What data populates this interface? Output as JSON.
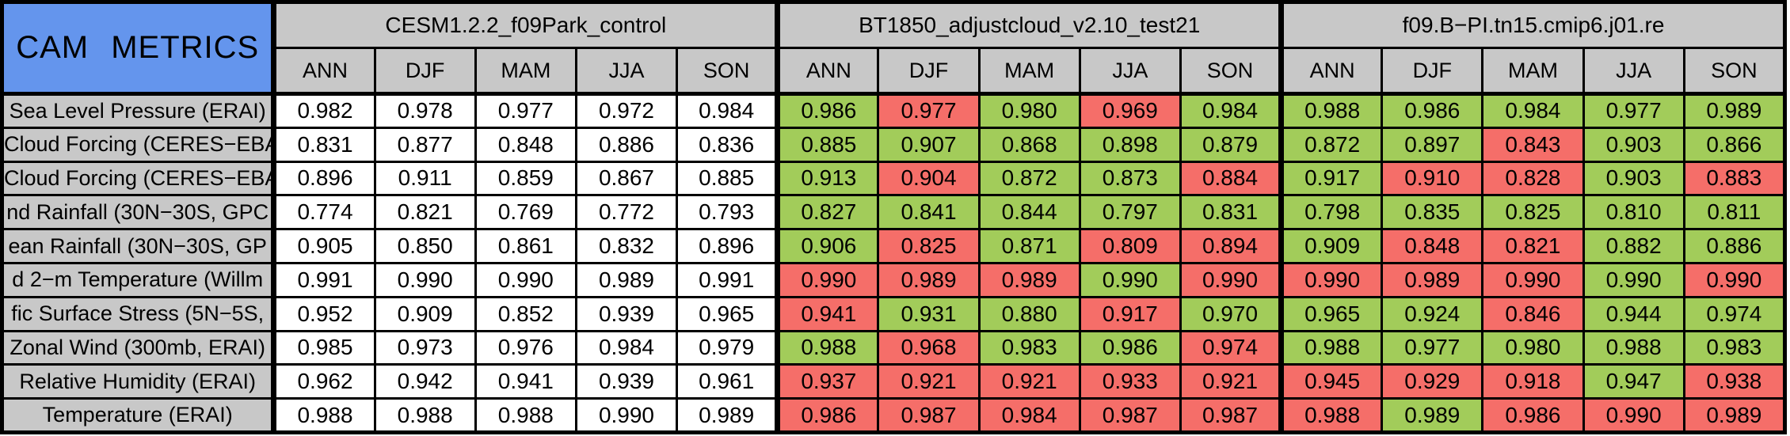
{
  "colors": {
    "header_blue": "#6495ED",
    "header_gray": "#C8C8C8",
    "good_green": "#A2CC5A",
    "bad_red": "#F56E69",
    "border_black": "#000000",
    "neutral_white": "#FFFFFF"
  },
  "chart_data": {
    "type": "table",
    "corner_label": "CAM METRICS",
    "seasons": [
      "ANN",
      "DJF",
      "MAM",
      "JJA",
      "SON"
    ],
    "groups": [
      {
        "name": "CESM1.2.2_f09Park_control"
      },
      {
        "name": "BT1850_adjustcloud_v2.10_test21"
      },
      {
        "name": "f09.B−PI.tn15.cmip6.j01.re"
      }
    ],
    "color_legend": {
      "w": "reference (no comparison color)",
      "g": "better/green",
      "r": "worse/red"
    },
    "rows": [
      {
        "label": "Sea Level Pressure (ERAI)",
        "values": [
          [
            "0.982",
            "0.978",
            "0.977",
            "0.972",
            "0.984"
          ],
          [
            "0.986",
            "0.977",
            "0.980",
            "0.969",
            "0.984"
          ],
          [
            "0.988",
            "0.986",
            "0.984",
            "0.977",
            "0.989"
          ]
        ],
        "flags": [
          [
            "w",
            "w",
            "w",
            "w",
            "w"
          ],
          [
            "g",
            "r",
            "g",
            "r",
            "g"
          ],
          [
            "g",
            "g",
            "g",
            "g",
            "g"
          ]
        ]
      },
      {
        "label": "Cloud Forcing (CERES−EBA",
        "values": [
          [
            "0.831",
            "0.877",
            "0.848",
            "0.886",
            "0.836"
          ],
          [
            "0.885",
            "0.907",
            "0.868",
            "0.898",
            "0.879"
          ],
          [
            "0.872",
            "0.897",
            "0.843",
            "0.903",
            "0.866"
          ]
        ],
        "flags": [
          [
            "w",
            "w",
            "w",
            "w",
            "w"
          ],
          [
            "g",
            "g",
            "g",
            "g",
            "g"
          ],
          [
            "g",
            "g",
            "r",
            "g",
            "g"
          ]
        ]
      },
      {
        "label": "Cloud Forcing (CERES−EBA",
        "values": [
          [
            "0.896",
            "0.911",
            "0.859",
            "0.867",
            "0.885"
          ],
          [
            "0.913",
            "0.904",
            "0.872",
            "0.873",
            "0.884"
          ],
          [
            "0.917",
            "0.910",
            "0.828",
            "0.903",
            "0.883"
          ]
        ],
        "flags": [
          [
            "w",
            "w",
            "w",
            "w",
            "w"
          ],
          [
            "g",
            "r",
            "g",
            "g",
            "r"
          ],
          [
            "g",
            "r",
            "r",
            "g",
            "r"
          ]
        ]
      },
      {
        "label": "nd Rainfall (30N−30S, GPC",
        "values": [
          [
            "0.774",
            "0.821",
            "0.769",
            "0.772",
            "0.793"
          ],
          [
            "0.827",
            "0.841",
            "0.844",
            "0.797",
            "0.831"
          ],
          [
            "0.798",
            "0.835",
            "0.825",
            "0.810",
            "0.811"
          ]
        ],
        "flags": [
          [
            "w",
            "w",
            "w",
            "w",
            "w"
          ],
          [
            "g",
            "g",
            "g",
            "g",
            "g"
          ],
          [
            "g",
            "g",
            "g",
            "g",
            "g"
          ]
        ]
      },
      {
        "label": "ean Rainfall (30N−30S, GP",
        "values": [
          [
            "0.905",
            "0.850",
            "0.861",
            "0.832",
            "0.896"
          ],
          [
            "0.906",
            "0.825",
            "0.871",
            "0.809",
            "0.894"
          ],
          [
            "0.909",
            "0.848",
            "0.821",
            "0.882",
            "0.886"
          ]
        ],
        "flags": [
          [
            "w",
            "w",
            "w",
            "w",
            "w"
          ],
          [
            "g",
            "r",
            "g",
            "r",
            "r"
          ],
          [
            "g",
            "r",
            "r",
            "g",
            "g"
          ]
        ]
      },
      {
        "label": "d 2−m Temperature (Willm",
        "values": [
          [
            "0.991",
            "0.990",
            "0.990",
            "0.989",
            "0.991"
          ],
          [
            "0.990",
            "0.989",
            "0.989",
            "0.990",
            "0.990"
          ],
          [
            "0.990",
            "0.989",
            "0.990",
            "0.990",
            "0.990"
          ]
        ],
        "flags": [
          [
            "w",
            "w",
            "w",
            "w",
            "w"
          ],
          [
            "r",
            "r",
            "r",
            "g",
            "r"
          ],
          [
            "r",
            "r",
            "r",
            "g",
            "r"
          ]
        ]
      },
      {
        "label": "fic Surface Stress (5N−5S,",
        "values": [
          [
            "0.952",
            "0.909",
            "0.852",
            "0.939",
            "0.965"
          ],
          [
            "0.941",
            "0.931",
            "0.880",
            "0.917",
            "0.970"
          ],
          [
            "0.965",
            "0.924",
            "0.846",
            "0.944",
            "0.974"
          ]
        ],
        "flags": [
          [
            "w",
            "w",
            "w",
            "w",
            "w"
          ],
          [
            "r",
            "g",
            "g",
            "r",
            "g"
          ],
          [
            "g",
            "g",
            "r",
            "g",
            "g"
          ]
        ]
      },
      {
        "label": "Zonal Wind (300mb, ERAI)",
        "values": [
          [
            "0.985",
            "0.973",
            "0.976",
            "0.984",
            "0.979"
          ],
          [
            "0.988",
            "0.968",
            "0.983",
            "0.986",
            "0.974"
          ],
          [
            "0.988",
            "0.977",
            "0.980",
            "0.988",
            "0.983"
          ]
        ],
        "flags": [
          [
            "w",
            "w",
            "w",
            "w",
            "w"
          ],
          [
            "g",
            "r",
            "g",
            "g",
            "r"
          ],
          [
            "g",
            "g",
            "g",
            "g",
            "g"
          ]
        ]
      },
      {
        "label": "Relative Humidity (ERAI)",
        "values": [
          [
            "0.962",
            "0.942",
            "0.941",
            "0.939",
            "0.961"
          ],
          [
            "0.937",
            "0.921",
            "0.921",
            "0.933",
            "0.921"
          ],
          [
            "0.945",
            "0.929",
            "0.918",
            "0.947",
            "0.938"
          ]
        ],
        "flags": [
          [
            "w",
            "w",
            "w",
            "w",
            "w"
          ],
          [
            "r",
            "r",
            "r",
            "r",
            "r"
          ],
          [
            "r",
            "r",
            "r",
            "g",
            "r"
          ]
        ]
      },
      {
        "label": "Temperature (ERAI)",
        "values": [
          [
            "0.988",
            "0.988",
            "0.988",
            "0.990",
            "0.989"
          ],
          [
            "0.986",
            "0.987",
            "0.984",
            "0.987",
            "0.987"
          ],
          [
            "0.988",
            "0.989",
            "0.986",
            "0.990",
            "0.989"
          ]
        ],
        "flags": [
          [
            "w",
            "w",
            "w",
            "w",
            "w"
          ],
          [
            "r",
            "r",
            "r",
            "r",
            "r"
          ],
          [
            "r",
            "g",
            "r",
            "r",
            "r"
          ]
        ]
      }
    ]
  }
}
